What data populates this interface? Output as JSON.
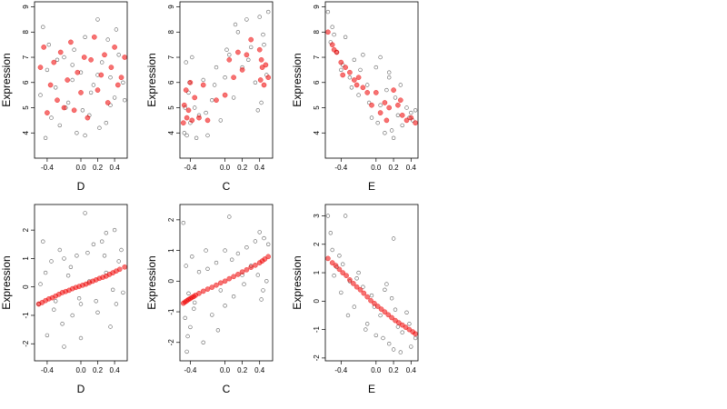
{
  "figure": {
    "colors": {
      "observed": "#444444",
      "fitted": "#ee0000",
      "frame": "#000000",
      "background": "#ffffff"
    }
  },
  "chart_data": [
    {
      "type": "scatter",
      "row": 0,
      "col": 0,
      "xlabel": "D",
      "ylabel": "Expression",
      "xlim": [
        -0.55,
        0.55
      ],
      "ylim": [
        3.0,
        9.2
      ],
      "xticks": [
        -0.4,
        0.0,
        0.2,
        0.4
      ],
      "xtick_labels": [
        "-0.4",
        "0.0",
        "0.2",
        "0.4"
      ],
      "yticks": [
        4,
        5,
        6,
        7,
        8,
        9
      ],
      "ytick_labels": [
        "4",
        "5",
        "6",
        "7",
        "8",
        "9"
      ],
      "series": [
        {
          "role": "observed",
          "style": "open-circle",
          "color": "#444444",
          "x": [
            -0.48,
            -0.45,
            -0.4,
            -0.35,
            -0.3,
            -0.25,
            -0.2,
            -0.15,
            -0.1,
            -0.05,
            0.0,
            0.05,
            0.1,
            0.15,
            0.2,
            0.25,
            0.3,
            0.35,
            0.4,
            0.45,
            0.5,
            -0.42,
            -0.38,
            -0.28,
            -0.18,
            -0.08,
            0.02,
            0.12,
            0.22,
            0.32,
            0.42,
            0.52,
            -0.1,
            0.05,
            0.2,
            0.35
          ],
          "y": [
            5.5,
            8.2,
            6.5,
            4.6,
            5.8,
            4.3,
            7.0,
            5.2,
            6.1,
            4.0,
            6.4,
            7.8,
            4.7,
            5.9,
            8.5,
            6.8,
            4.4,
            6.2,
            5.4,
            7.1,
            6.0,
            3.8,
            7.5,
            6.9,
            5.0,
            7.3,
            4.9,
            5.6,
            4.2,
            7.7,
            8.1,
            5.3,
            6.7,
            3.9,
            6.3,
            5.1
          ]
        },
        {
          "role": "fitted",
          "style": "filled-circle",
          "color": "#ee0000",
          "x": [
            -0.48,
            -0.44,
            -0.4,
            -0.36,
            -0.32,
            -0.28,
            -0.24,
            -0.2,
            -0.16,
            -0.12,
            -0.08,
            -0.04,
            0.0,
            0.04,
            0.08,
            0.12,
            0.16,
            0.2,
            0.24,
            0.28,
            0.32,
            0.36,
            0.4,
            0.44,
            0.48,
            0.52
          ],
          "y": [
            6.6,
            7.4,
            4.8,
            5.9,
            6.8,
            5.3,
            7.2,
            5.0,
            6.1,
            7.6,
            4.9,
            6.4,
            5.6,
            7.0,
            4.6,
            6.9,
            7.8,
            5.7,
            6.3,
            7.1,
            5.2,
            6.6,
            7.4,
            5.9,
            6.2,
            7.0
          ]
        }
      ]
    },
    {
      "type": "scatter",
      "row": 0,
      "col": 1,
      "xlabel": "C",
      "ylabel": "Expression",
      "xlim": [
        -0.52,
        0.55
      ],
      "ylim": [
        3.0,
        9.2
      ],
      "xticks": [
        -0.4,
        0.0,
        0.2,
        0.4
      ],
      "xtick_labels": [
        "-0.4",
        "0.0",
        "0.2",
        "0.4"
      ],
      "yticks": [
        4,
        5,
        6,
        7,
        8,
        9
      ],
      "ytick_labels": [
        "4",
        "5",
        "6",
        "7",
        "8",
        "9"
      ],
      "series": [
        {
          "role": "observed",
          "style": "open-circle",
          "color": "#444444",
          "x": [
            -0.47,
            -0.45,
            -0.44,
            -0.42,
            -0.4,
            -0.38,
            -0.35,
            -0.3,
            -0.25,
            -0.2,
            -0.15,
            -0.1,
            -0.05,
            0.0,
            0.05,
            0.1,
            0.15,
            0.2,
            0.25,
            0.3,
            0.35,
            0.4,
            0.42,
            0.45,
            0.48,
            0.5,
            -0.46,
            -0.41,
            -0.33,
            -0.22,
            -0.12,
            0.02,
            0.12,
            0.27,
            0.38,
            0.44
          ],
          "y": [
            4.0,
            6.8,
            3.9,
            5.6,
            4.4,
            7.0,
            5.0,
            4.7,
            6.1,
            3.9,
            5.3,
            6.6,
            4.5,
            6.2,
            7.1,
            5.4,
            8.0,
            6.6,
            8.5,
            7.4,
            6.0,
            8.6,
            5.2,
            7.5,
            6.3,
            8.8,
            5.0,
            6.0,
            3.8,
            4.8,
            5.9,
            7.3,
            8.3,
            6.9,
            4.9,
            7.9
          ]
        },
        {
          "role": "fitted",
          "style": "filled-circle",
          "color": "#ee0000",
          "x": [
            -0.48,
            -0.47,
            -0.45,
            -0.44,
            -0.42,
            -0.4,
            -0.38,
            -0.35,
            -0.3,
            -0.25,
            -0.2,
            -0.1,
            0.0,
            0.05,
            0.1,
            0.15,
            0.2,
            0.25,
            0.3,
            0.4,
            0.41,
            0.42,
            0.43,
            0.45,
            0.47,
            0.5
          ],
          "y": [
            4.4,
            5.1,
            5.7,
            4.6,
            4.9,
            6.0,
            4.5,
            5.4,
            4.6,
            5.9,
            4.5,
            5.3,
            5.5,
            6.9,
            6.2,
            7.2,
            6.5,
            7.1,
            7.7,
            7.3,
            6.1,
            6.9,
            6.6,
            5.9,
            6.7,
            6.2
          ]
        }
      ]
    },
    {
      "type": "scatter",
      "row": 0,
      "col": 2,
      "xlabel": "E",
      "ylabel": "Expression",
      "xlim": [
        -0.58,
        0.48
      ],
      "ylim": [
        3.0,
        9.2
      ],
      "xticks": [
        -0.4,
        0.0,
        0.2,
        0.4
      ],
      "xtick_labels": [
        "-0.4",
        "0.0",
        "0.2",
        "0.4"
      ],
      "yticks": [
        4,
        5,
        6,
        7,
        8,
        9
      ],
      "ytick_labels": [
        "4",
        "5",
        "6",
        "7",
        "8",
        "9"
      ],
      "series": [
        {
          "role": "observed",
          "style": "open-circle",
          "color": "#444444",
          "x": [
            -0.55,
            -0.52,
            -0.5,
            -0.45,
            -0.4,
            -0.35,
            -0.3,
            -0.25,
            -0.2,
            -0.15,
            -0.1,
            -0.05,
            0.0,
            0.05,
            0.1,
            0.15,
            0.2,
            0.22,
            0.25,
            0.3,
            0.35,
            0.4,
            0.42,
            0.45,
            -0.48,
            -0.38,
            -0.28,
            -0.18,
            -0.08,
            0.02,
            0.12,
            0.18,
            0.28,
            0.38,
            0.05,
            0.15
          ],
          "y": [
            8.8,
            7.6,
            8.2,
            7.2,
            6.5,
            7.8,
            6.2,
            6.9,
            5.5,
            7.1,
            5.9,
            4.6,
            6.6,
            5.1,
            4.0,
            6.2,
            3.8,
            5.4,
            4.7,
            4.3,
            5.0,
            4.8,
            4.5,
            4.9,
            7.9,
            6.7,
            5.8,
            6.5,
            5.2,
            4.4,
            5.7,
            4.1,
            5.9,
            4.6,
            7.0,
            6.4
          ]
        },
        {
          "role": "fitted",
          "style": "filled-circle",
          "color": "#ee0000",
          "x": [
            -0.55,
            -0.5,
            -0.45,
            -0.4,
            -0.35,
            -0.3,
            -0.25,
            -0.2,
            -0.15,
            -0.1,
            -0.05,
            0.0,
            0.05,
            0.1,
            0.15,
            0.2,
            0.25,
            0.3,
            0.35,
            0.4,
            0.45,
            -0.48,
            -0.38,
            -0.22,
            0.12,
            0.28
          ],
          "y": [
            8.0,
            7.5,
            7.2,
            6.8,
            6.6,
            6.4,
            6.1,
            6.2,
            5.8,
            5.6,
            5.1,
            5.6,
            4.8,
            5.2,
            5.0,
            5.7,
            5.1,
            4.7,
            4.5,
            4.6,
            4.4,
            7.3,
            6.3,
            5.9,
            4.5,
            5.3
          ]
        }
      ]
    },
    {
      "type": "scatter",
      "row": 1,
      "col": 0,
      "xlabel": "D",
      "ylabel": "Expression",
      "xlim": [
        -0.55,
        0.55
      ],
      "ylim": [
        -2.6,
        2.9
      ],
      "xticks": [
        -0.4,
        0.0,
        0.2,
        0.4
      ],
      "xtick_labels": [
        "-0.4",
        "0.0",
        "0.2",
        "0.4"
      ],
      "yticks": [
        -2,
        -1,
        0,
        1,
        2
      ],
      "ytick_labels": [
        "-2",
        "-1",
        "0",
        "1",
        "2"
      ],
      "series": [
        {
          "role": "observed",
          "style": "open-circle",
          "color": "#444444",
          "x": [
            -0.5,
            -0.45,
            -0.4,
            -0.35,
            -0.3,
            -0.25,
            -0.2,
            -0.15,
            -0.1,
            -0.05,
            0.0,
            0.05,
            0.1,
            0.15,
            0.2,
            0.25,
            0.3,
            0.35,
            0.4,
            0.45,
            0.5,
            -0.42,
            -0.32,
            -0.22,
            -0.12,
            -0.02,
            0.08,
            0.18,
            0.28,
            0.38,
            0.48,
            0.0,
            -0.48,
            0.42,
            -0.2,
            0.3
          ],
          "y": [
            -0.6,
            1.6,
            -1.7,
            0.9,
            -0.5,
            1.3,
            -2.1,
            0.4,
            -1.0,
            1.1,
            -0.6,
            2.6,
            0.2,
            1.5,
            -0.9,
            1.6,
            0.5,
            -1.4,
            2.0,
            0.9,
            -0.2,
            0.5,
            -0.8,
            -1.3,
            0.7,
            -0.4,
            1.2,
            -0.5,
            1.1,
            -0.1,
            1.3,
            -1.8,
            0.1,
            -0.6,
            1.0,
            1.9
          ]
        },
        {
          "role": "fitted",
          "style": "filled-circle",
          "color": "#ee0000",
          "x": [
            -0.5,
            -0.46,
            -0.42,
            -0.38,
            -0.34,
            -0.3,
            -0.26,
            -0.22,
            -0.18,
            -0.14,
            -0.1,
            -0.06,
            -0.02,
            0.02,
            0.06,
            0.1,
            0.14,
            0.18,
            0.22,
            0.26,
            0.3,
            0.34,
            0.38,
            0.42,
            0.46,
            0.52
          ],
          "y": [
            -0.6,
            -0.55,
            -0.48,
            -0.42,
            -0.38,
            -0.32,
            -0.26,
            -0.2,
            -0.16,
            -0.12,
            -0.06,
            -0.02,
            0.02,
            0.06,
            0.1,
            0.15,
            0.2,
            0.25,
            0.3,
            0.34,
            0.38,
            0.44,
            0.5,
            0.56,
            0.62,
            0.7
          ]
        }
      ]
    },
    {
      "type": "scatter",
      "row": 1,
      "col": 1,
      "xlabel": "C",
      "ylabel": "Expression",
      "xlim": [
        -0.52,
        0.55
      ],
      "ylim": [
        -2.6,
        2.5
      ],
      "xticks": [
        -0.4,
        0.0,
        0.2,
        0.4
      ],
      "xtick_labels": [
        "-0.4",
        "0.0",
        "0.2",
        "0.4"
      ],
      "yticks": [
        -2,
        -1,
        0,
        1,
        2
      ],
      "ytick_labels": [
        "-2",
        "-1",
        "0",
        "1",
        "2"
      ],
      "series": [
        {
          "role": "observed",
          "style": "open-circle",
          "color": "#444444",
          "x": [
            -0.48,
            -0.46,
            -0.45,
            -0.44,
            -0.42,
            -0.4,
            -0.38,
            -0.35,
            -0.3,
            -0.25,
            -0.2,
            -0.15,
            -0.1,
            -0.05,
            0.0,
            0.05,
            0.1,
            0.15,
            0.2,
            0.25,
            0.3,
            0.35,
            0.4,
            0.42,
            0.45,
            0.48,
            0.5,
            -0.43,
            -0.36,
            -0.22,
            -0.08,
            0.08,
            0.22,
            0.38,
            0.44,
            0.0
          ],
          "y": [
            1.9,
            -1.2,
            0.5,
            -2.3,
            -0.4,
            -1.5,
            0.8,
            -0.7,
            0.3,
            -2.0,
            0.4,
            -1.1,
            0.6,
            -0.3,
            1.0,
            2.1,
            -0.5,
            0.9,
            0.2,
            1.1,
            0.5,
            1.3,
            1.6,
            -0.6,
            1.4,
            0.0,
            1.2,
            -1.8,
            -0.9,
            1.0,
            -1.6,
            0.7,
            -0.1,
            0.2,
            -0.3,
            -0.8
          ]
        },
        {
          "role": "fitted",
          "style": "filled-circle",
          "color": "#ee0000",
          "x": [
            -0.48,
            -0.46,
            -0.44,
            -0.42,
            -0.4,
            -0.38,
            -0.36,
            -0.34,
            -0.3,
            -0.25,
            -0.2,
            -0.15,
            -0.1,
            -0.05,
            0.0,
            0.05,
            0.1,
            0.15,
            0.2,
            0.25,
            0.3,
            0.35,
            0.4,
            0.43,
            0.46,
            0.5
          ],
          "y": [
            -0.72,
            -0.68,
            -0.64,
            -0.6,
            -0.57,
            -0.53,
            -0.5,
            -0.46,
            -0.4,
            -0.33,
            -0.26,
            -0.2,
            -0.13,
            -0.06,
            0.0,
            0.08,
            0.15,
            0.22,
            0.3,
            0.37,
            0.45,
            0.52,
            0.6,
            0.66,
            0.72,
            0.8
          ]
        }
      ]
    },
    {
      "type": "scatter",
      "row": 1,
      "col": 2,
      "xlabel": "E",
      "ylabel": "Expression",
      "xlim": [
        -0.58,
        0.48
      ],
      "ylim": [
        -2.1,
        3.4
      ],
      "xticks": [
        -0.4,
        0.0,
        0.2,
        0.4
      ],
      "xtick_labels": [
        "-0.4",
        "0.0",
        "0.2",
        "0.4"
      ],
      "yticks": [
        -2,
        -1,
        0,
        1,
        2,
        3
      ],
      "ytick_labels": [
        "-2",
        "-1",
        "0",
        "1",
        "2",
        "3"
      ],
      "series": [
        {
          "role": "observed",
          "style": "open-circle",
          "color": "#444444",
          "x": [
            -0.55,
            -0.52,
            -0.5,
            -0.48,
            -0.45,
            -0.4,
            -0.35,
            -0.3,
            -0.25,
            -0.2,
            -0.15,
            -0.1,
            -0.05,
            0.0,
            0.05,
            0.1,
            0.15,
            0.2,
            0.22,
            0.25,
            0.3,
            0.35,
            0.4,
            0.45,
            -0.42,
            -0.32,
            -0.22,
            -0.12,
            -0.02,
            0.08,
            0.18,
            0.28,
            0.38,
            0.12,
            0.2,
            -0.38
          ],
          "y": [
            3.0,
            2.4,
            1.8,
            0.9,
            1.2,
            0.3,
            3.0,
            0.7,
            -0.2,
            1.0,
            0.5,
            -0.8,
            0.2,
            -1.2,
            -0.5,
            0.4,
            -1.5,
            2.2,
            -0.3,
            -0.9,
            -1.1,
            -0.4,
            -1.6,
            -1.3,
            1.6,
            -0.5,
            0.8,
            -1.0,
            -0.2,
            -1.3,
            0.1,
            -1.8,
            -0.8,
            0.6,
            -1.7,
            1.3
          ]
        },
        {
          "role": "fitted",
          "style": "filled-circle",
          "color": "#ee0000",
          "x": [
            -0.55,
            -0.5,
            -0.46,
            -0.42,
            -0.38,
            -0.34,
            -0.3,
            -0.26,
            -0.22,
            -0.18,
            -0.14,
            -0.1,
            -0.06,
            -0.02,
            0.02,
            0.06,
            0.1,
            0.14,
            0.18,
            0.22,
            0.26,
            0.3,
            0.34,
            0.38,
            0.42,
            0.45
          ],
          "y": [
            1.5,
            1.35,
            1.25,
            1.12,
            1.0,
            0.9,
            0.75,
            0.62,
            0.5,
            0.4,
            0.28,
            0.15,
            0.02,
            -0.08,
            -0.18,
            -0.28,
            -0.38,
            -0.48,
            -0.58,
            -0.68,
            -0.76,
            -0.84,
            -0.92,
            -1.0,
            -1.08,
            -1.15
          ]
        }
      ]
    }
  ]
}
